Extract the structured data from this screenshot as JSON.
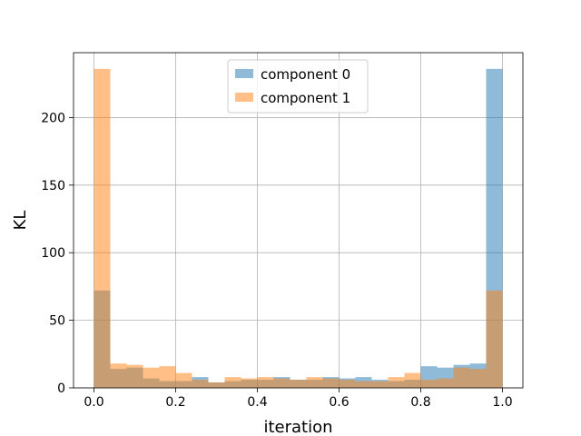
{
  "chart_data": {
    "type": "bar",
    "subtype": "overlapping-histogram",
    "title": "",
    "xlabel": "iteration",
    "ylabel": "KL",
    "xlim": [
      -0.05,
      1.05
    ],
    "ylim": [
      0,
      248
    ],
    "xticks": [
      0.0,
      0.2,
      0.4,
      0.6,
      0.8,
      1.0
    ],
    "xtick_labels": [
      "0.0",
      "0.2",
      "0.4",
      "0.6",
      "0.8",
      "1.0"
    ],
    "yticks": [
      0,
      50,
      100,
      150,
      200
    ],
    "ytick_labels": [
      "0",
      "50",
      "100",
      "150",
      "200"
    ],
    "grid": true,
    "legend_position": "top-center",
    "bin_edges": [
      0.0,
      0.04,
      0.08,
      0.12,
      0.16,
      0.2,
      0.24,
      0.28,
      0.32,
      0.36,
      0.4,
      0.44,
      0.48,
      0.52,
      0.56,
      0.6,
      0.64,
      0.68,
      0.72,
      0.76,
      0.8,
      0.84,
      0.88,
      0.92,
      0.96,
      1.0
    ],
    "series": [
      {
        "name": "component 0",
        "color": "#1f77b4",
        "alpha": 0.5,
        "values": [
          72,
          14,
          15,
          7,
          5,
          5,
          8,
          4,
          5,
          6,
          6,
          8,
          6,
          6,
          8,
          7,
          8,
          6,
          5,
          6,
          16,
          15,
          17,
          18,
          236
        ]
      },
      {
        "name": "component 1",
        "color": "#ff7f0e",
        "alpha": 0.5,
        "values": [
          236,
          18,
          17,
          15,
          16,
          11,
          6,
          4,
          8,
          7,
          8,
          7,
          6,
          8,
          7,
          6,
          5,
          5,
          8,
          11,
          6,
          7,
          15,
          14,
          72
        ]
      }
    ]
  }
}
